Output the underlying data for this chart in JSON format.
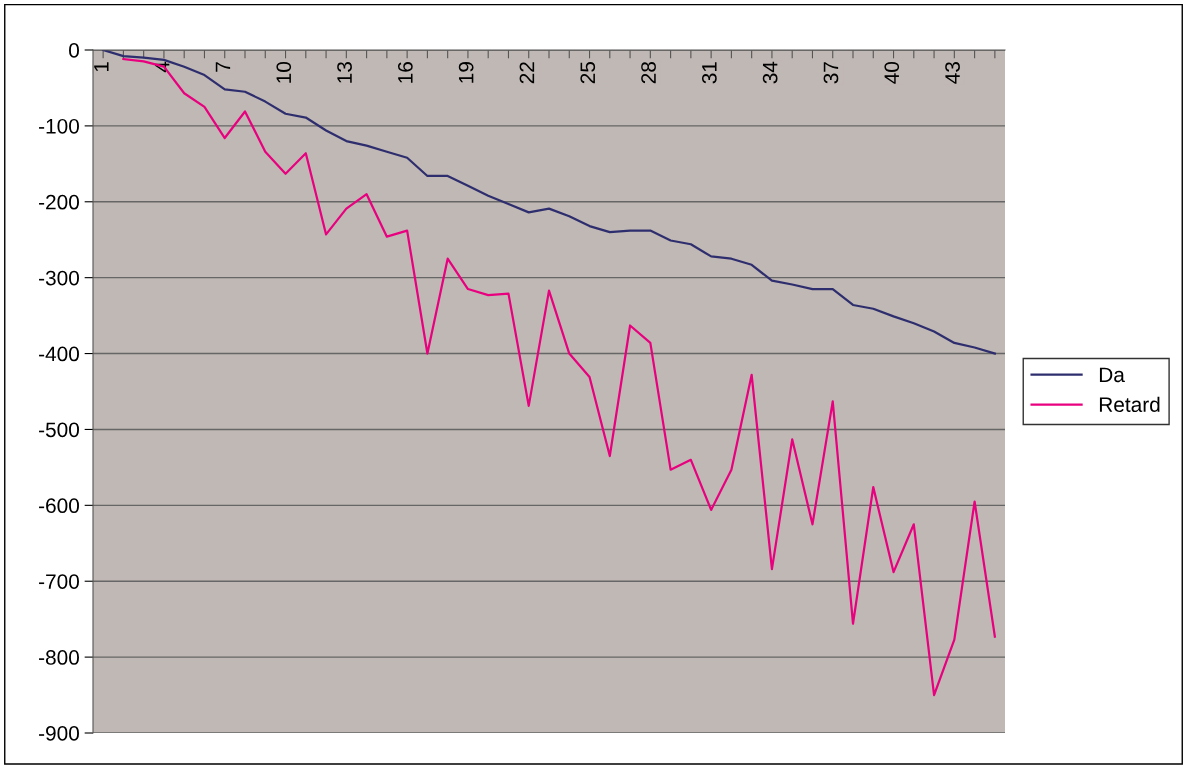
{
  "chart_data": {
    "type": "line",
    "categories": [
      "1",
      null,
      null,
      "4",
      null,
      null,
      "7",
      null,
      null,
      "10",
      null,
      null,
      "13",
      null,
      null,
      "16",
      null,
      null,
      "19",
      null,
      null,
      "22",
      null,
      null,
      "25",
      null,
      null,
      "28",
      null,
      null,
      "31",
      null,
      null,
      "34",
      null,
      null,
      "37",
      null,
      null,
      "40",
      null,
      null,
      "43",
      null,
      null
    ],
    "series": [
      {
        "name": "Da",
        "color": "#2e2e6e",
        "values": [
          0,
          -8,
          -10,
          -13,
          -22,
          -33,
          -52,
          -55,
          -68,
          -84,
          -89,
          -106,
          -120,
          -126,
          -134,
          -142,
          -166,
          -166,
          -179,
          -192,
          -203,
          -214,
          -209,
          -219,
          -232,
          -240,
          -238,
          -238,
          -251,
          -256,
          -272,
          -275,
          -283,
          -304,
          -309,
          -315,
          -315,
          -336,
          -341,
          -351,
          -360,
          -371,
          -386,
          -392,
          -400
        ]
      },
      {
        "name": "Retard",
        "color": "#e8007f",
        "values": [
          null,
          -12,
          -15,
          -22,
          -57,
          -75,
          -116,
          -81,
          -134,
          -163,
          -136,
          -243,
          -209,
          -190,
          -246,
          -238,
          -400,
          -275,
          -315,
          -323,
          -321,
          -469,
          -317,
          -400,
          -431,
          -535,
          -363,
          -386,
          -553,
          -540,
          -606,
          -553,
          -428,
          -684,
          -513,
          -625,
          -463,
          -756,
          -576,
          -688,
          -625,
          -850,
          -777,
          -595,
          -773
        ]
      }
    ],
    "ylim": [
      -900,
      0
    ],
    "yticks": [
      0,
      -100,
      -200,
      -300,
      -400,
      -500,
      -600,
      -700,
      -800,
      -900
    ],
    "grid": "y",
    "legend": "right",
    "marker": "none",
    "line_style": "solid"
  }
}
